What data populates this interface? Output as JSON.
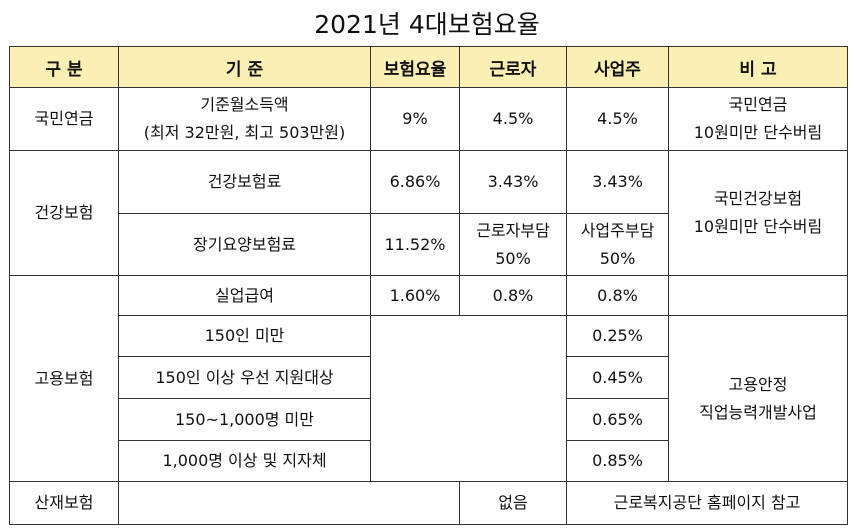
{
  "title": "2021년 4대보험요율",
  "headers": {
    "category": "구  분",
    "basis": "기  준",
    "rate": "보험요율",
    "worker": "근로자",
    "employer": "사업주",
    "note": "비  고"
  },
  "pension": {
    "name": "국민연금",
    "basis_line1": "기준월소득액",
    "basis_line2": "(최저 32만원, 최고 503만원)",
    "rate": "9%",
    "worker": "4.5%",
    "employer": "4.5%",
    "note_line1": "국민연금",
    "note_line2": "10원미만 단수버림"
  },
  "health": {
    "name": "건강보험",
    "row1": {
      "basis": "건강보험료",
      "rate": "6.86%",
      "worker": "3.43%",
      "employer": "3.43%"
    },
    "row2": {
      "basis": "장기요양보험료",
      "rate": "11.52%",
      "worker_line1": "근로자부담",
      "worker_line2": "50%",
      "employer_line1": "사업주부담",
      "employer_line2": "50%"
    },
    "note_line1": "국민건강보험",
    "note_line2": "10원미만 단수버림"
  },
  "employment": {
    "name": "고용보험",
    "row1": {
      "basis": "실업급여",
      "rate": "1.60%",
      "worker": "0.8%",
      "employer": "0.8%"
    },
    "row2": {
      "basis": "150인 미만",
      "employer": "0.25%"
    },
    "row3": {
      "basis": "150인 이상 우선 지원대상",
      "employer": "0.45%"
    },
    "row4": {
      "basis": "150~1,000명 미만",
      "employer": "0.65%"
    },
    "row5": {
      "basis": "1,000명 이상 및 지자체",
      "employer": "0.85%"
    },
    "note_line1": "고용안정",
    "note_line2": "직업능력개발사업"
  },
  "industrial": {
    "name": "산재보험",
    "worker": "없음",
    "note": "근로복지공단 홈페이지 참고"
  }
}
